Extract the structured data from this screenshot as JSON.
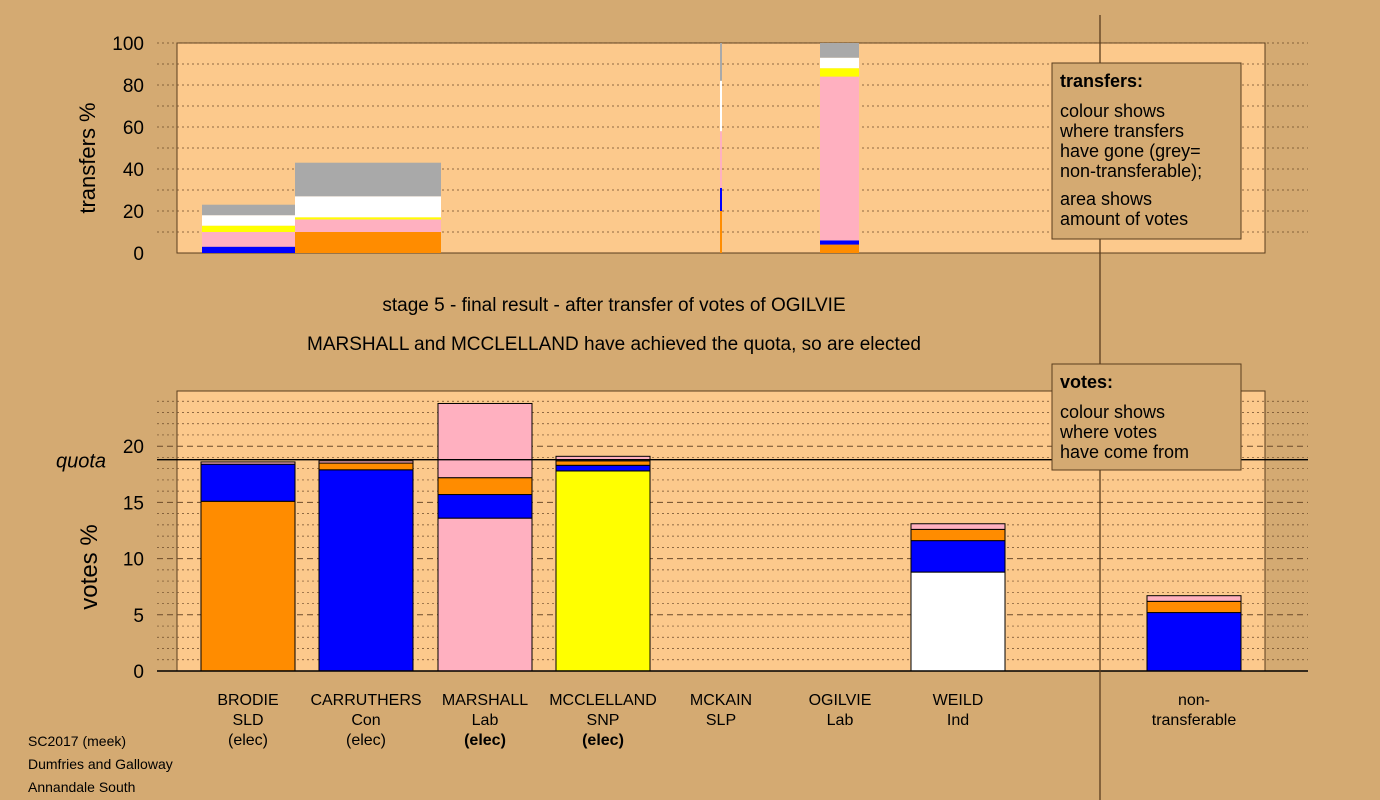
{
  "colors": {
    "background": "#d4aa72",
    "plot_background": "#fcc98c",
    "SLD": "#ff8c00",
    "Con": "#0000ff",
    "Lab": "#ffb0c0",
    "SNP": "#ffff00",
    "Ind": "#ffffff",
    "non_transferable": "#a9a9a9"
  },
  "headings": {
    "stage": "stage 5 - final result - after transfer of votes of OGILVIE",
    "result": "MARSHALL and MCCLELLAND have achieved the quota, so are elected"
  },
  "transfers_legend": {
    "title": "transfers:",
    "lines1": [
      "colour shows",
      "where transfers",
      "have gone (grey=",
      "non-transferable);"
    ],
    "lines2": [
      "area shows",
      "amount of votes"
    ]
  },
  "votes_legend": {
    "title": "votes:",
    "lines": [
      "colour shows",
      "where votes",
      "have come from"
    ]
  },
  "footer": [
    "SC2017 (meek)",
    "Dumfries and Galloway",
    "Annandale South"
  ],
  "chart_data": [
    {
      "type": "bar",
      "name": "transfers",
      "ylabel": "transfers %",
      "ylim": [
        0,
        100
      ],
      "yticks": [
        0,
        20,
        40,
        60,
        80,
        100
      ],
      "columns": [
        {
          "candidate": "BRODIE",
          "segments": [
            {
              "party": "Con",
              "value": 3
            },
            {
              "party": "Lab",
              "value": 7
            },
            {
              "party": "SNP",
              "value": 3
            },
            {
              "party": "Ind",
              "value": 5
            },
            {
              "party": "non_transferable",
              "value": 5
            }
          ]
        },
        {
          "candidate": "CARRUTHERS",
          "segments": [
            {
              "party": "SLD",
              "value": 10
            },
            {
              "party": "Lab",
              "value": 6
            },
            {
              "party": "SNP",
              "value": 1
            },
            {
              "party": "Ind",
              "value": 10
            },
            {
              "party": "non_transferable",
              "value": 16
            }
          ]
        },
        {
          "candidate": "MCKAIN",
          "segments": [
            {
              "party": "SLD",
              "value": 20
            },
            {
              "party": "Con",
              "value": 11
            },
            {
              "party": "Lab",
              "value": 27
            },
            {
              "party": "Ind",
              "value": 24
            },
            {
              "party": "non_transferable",
              "value": 18
            }
          ]
        },
        {
          "candidate": "OGILVIE",
          "segments": [
            {
              "party": "SLD",
              "value": 4
            },
            {
              "party": "Con",
              "value": 2
            },
            {
              "party": "Lab",
              "value": 78
            },
            {
              "party": "SNP",
              "value": 4
            },
            {
              "party": "Ind",
              "value": 5
            },
            {
              "party": "non_transferable",
              "value": 7
            }
          ]
        }
      ]
    },
    {
      "type": "bar",
      "name": "votes",
      "ylabel": "votes %",
      "ylim": [
        0,
        25
      ],
      "yticks": [
        0,
        5,
        10,
        15,
        20
      ],
      "quota": 18.8,
      "quota_label": "quota",
      "candidates": [
        {
          "name": "BRODIE",
          "party": "SLD",
          "status": "(elec)",
          "status_bold": false,
          "segments": [
            {
              "party": "SLD",
              "value": 15.1
            },
            {
              "party": "Con",
              "value": 3.3
            },
            {
              "party": "Lab",
              "value": 0.2
            }
          ]
        },
        {
          "name": "CARRUTHERS",
          "party": "Con",
          "status": "(elec)",
          "status_bold": false,
          "segments": [
            {
              "party": "Con",
              "value": 17.9
            },
            {
              "party": "SLD",
              "value": 0.6
            },
            {
              "party": "Lab",
              "value": 0.2
            }
          ]
        },
        {
          "name": "MARSHALL",
          "party": "Lab",
          "status": "(elec)",
          "status_bold": true,
          "segments": [
            {
              "party": "Lab",
              "value": 13.6
            },
            {
              "party": "Con",
              "value": 2.1
            },
            {
              "party": "SLD",
              "value": 1.5
            },
            {
              "party": "Lab",
              "value": 6.6
            }
          ]
        },
        {
          "name": "MCCLELLAND",
          "party": "SNP",
          "status": "(elec)",
          "status_bold": true,
          "segments": [
            {
              "party": "SNP",
              "value": 17.8
            },
            {
              "party": "Con",
              "value": 0.5
            },
            {
              "party": "SLD",
              "value": 0.4
            },
            {
              "party": "Lab",
              "value": 0.4
            }
          ]
        },
        {
          "name": "MCKAIN",
          "party": "SLP",
          "status": "",
          "status_bold": false,
          "segments": []
        },
        {
          "name": "OGILVIE",
          "party": "Lab",
          "status": "",
          "status_bold": false,
          "segments": []
        },
        {
          "name": "WEILD",
          "party": "Ind",
          "status": "",
          "status_bold": false,
          "segments": [
            {
              "party": "Ind",
              "value": 8.8
            },
            {
              "party": "Con",
              "value": 2.8
            },
            {
              "party": "SLD",
              "value": 1.0
            },
            {
              "party": "Lab",
              "value": 0.5
            }
          ]
        }
      ],
      "non_transferable": {
        "label_lines": [
          "non-",
          "transferable"
        ],
        "segments": [
          {
            "party": "Con",
            "value": 5.2
          },
          {
            "party": "SLD",
            "value": 1.0
          },
          {
            "party": "Lab",
            "value": 0.5
          }
        ]
      }
    }
  ]
}
